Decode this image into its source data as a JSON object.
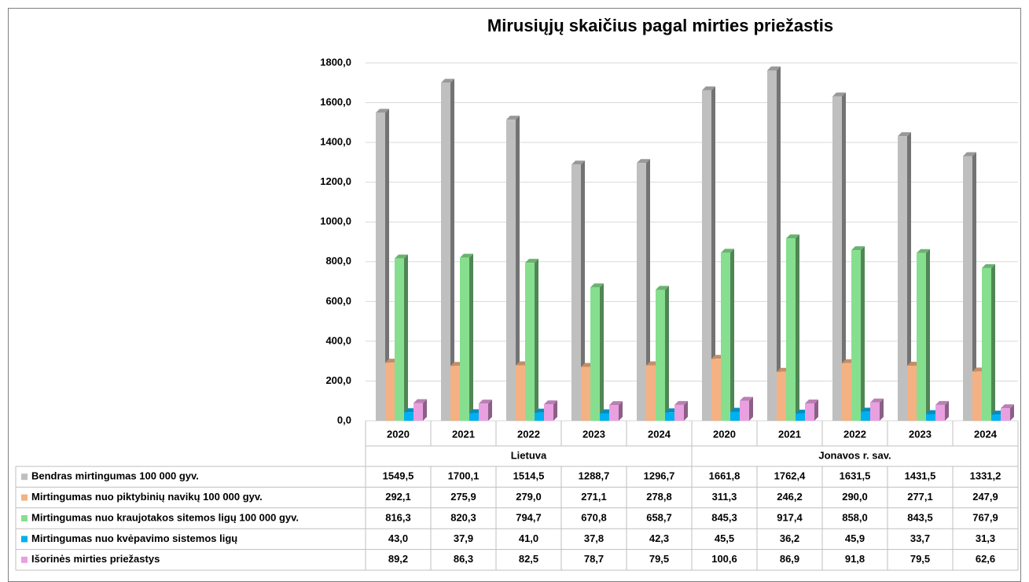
{
  "chart_data": {
    "type": "bar3d",
    "title": "Mirusiųjų skaičius pagal mirties priežastis",
    "categories": [
      "2020",
      "2021",
      "2022",
      "2023",
      "2024",
      "2020",
      "2021",
      "2022",
      "2023",
      "2024"
    ],
    "groups": [
      {
        "label": "Lietuva"
      },
      {
        "label": "Jonavos r. sav."
      }
    ],
    "ylim": [
      0,
      1800
    ],
    "yticks": [
      {
        "value": 0,
        "label": "0,0"
      },
      {
        "value": 200,
        "label": "200,0"
      },
      {
        "value": 400,
        "label": "400,0"
      },
      {
        "value": 600,
        "label": "600,0"
      },
      {
        "value": 800,
        "label": "800,0"
      },
      {
        "value": 1000,
        "label": "1000,0"
      },
      {
        "value": 1200,
        "label": "1200,0"
      },
      {
        "value": 1400,
        "label": "1400,0"
      },
      {
        "value": 1600,
        "label": "1600,0"
      },
      {
        "value": 1800,
        "label": "1800,0"
      }
    ],
    "grid": true,
    "series": [
      {
        "name": "Bendras mirtingumas 100 000 gyv.",
        "color": "#bfbfbf",
        "values": [
          1549.5,
          1700.1,
          1514.5,
          1288.7,
          1296.7,
          1661.8,
          1762.4,
          1631.5,
          1431.5,
          1331.2
        ],
        "value_labels": [
          "1549,5",
          "1700,1",
          "1514,5",
          "1288,7",
          "1296,7",
          "1661,8",
          "1762,4",
          "1631,5",
          "1431,5",
          "1331,2"
        ]
      },
      {
        "name": "Mirtingumas nuo piktybinių navikų 100 000 gyv.",
        "color": "#f4b183",
        "values": [
          292.1,
          275.9,
          279.0,
          271.1,
          278.8,
          311.3,
          246.2,
          290.0,
          277.1,
          247.9
        ],
        "value_labels": [
          "292,1",
          "275,9",
          "279,0",
          "271,1",
          "278,8",
          "311,3",
          "246,2",
          "290,0",
          "277,1",
          "247,9"
        ]
      },
      {
        "name": "Mirtingumas nuo kraujotakos sitemos ligų 100 000 gyv.",
        "color": "#86df8e",
        "values": [
          816.3,
          820.3,
          794.7,
          670.8,
          658.7,
          845.3,
          917.4,
          858.0,
          843.5,
          767.9
        ],
        "value_labels": [
          "816,3",
          "820,3",
          "794,7",
          "670,8",
          "658,7",
          "845,3",
          "917,4",
          "858,0",
          "843,5",
          "767,9"
        ]
      },
      {
        "name": "Mirtingumas nuo kvėpavimo sistemos ligų",
        "color": "#00b0f0",
        "values": [
          43.0,
          37.9,
          41.0,
          37.8,
          42.3,
          45.5,
          36.2,
          45.9,
          33.7,
          31.3
        ],
        "value_labels": [
          "43,0",
          "37,9",
          "41,0",
          "37,8",
          "42,3",
          "45,5",
          "36,2",
          "45,9",
          "33,7",
          "31,3"
        ]
      },
      {
        "name": "Išorinės mirties priežastys",
        "color": "#e8a0e0",
        "values": [
          89.2,
          86.3,
          82.5,
          78.7,
          79.5,
          100.6,
          86.9,
          91.8,
          79.5,
          62.6
        ],
        "value_labels": [
          "89,2",
          "86,3",
          "82,5",
          "78,7",
          "79,5",
          "100,6",
          "86,9",
          "91,8",
          "79,5",
          "62,6"
        ]
      }
    ]
  }
}
